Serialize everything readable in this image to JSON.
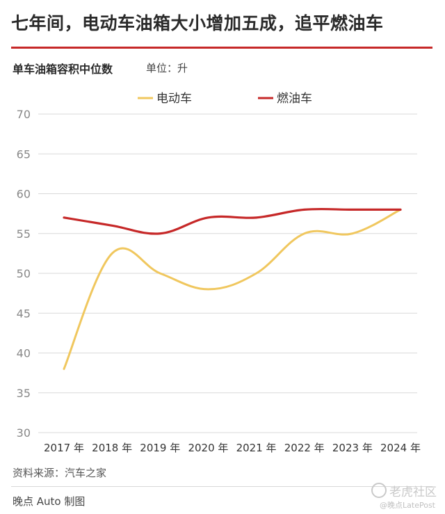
{
  "header": {
    "title": "七年间，电动车油箱大小增加五成，追平燃油车",
    "subtitle": "单车油箱容积中位数",
    "unit": "单位：升"
  },
  "footer": {
    "source": "资料来源：汽车之家",
    "credit": "晚点 Auto 制图",
    "watermark_main": "老虎社区",
    "watermark_sub": "@晚点LatePost"
  },
  "colors": {
    "accent_rule": "#c62828",
    "ev_line": "#f0c75e",
    "ice_line": "#c62828",
    "grid": "#d9d9d9"
  },
  "chart_data": {
    "type": "line",
    "title": "单车油箱容积中位数",
    "ylabel": "单位：升",
    "xlabel": "",
    "categories": [
      "2017 年",
      "2018 年",
      "2019 年",
      "2020 年",
      "2021 年",
      "2022 年",
      "2023 年",
      "2024 年"
    ],
    "yticks": [
      30,
      35,
      40,
      45,
      50,
      55,
      60,
      65,
      70
    ],
    "ylim": [
      30,
      70
    ],
    "grid": true,
    "legend_position": "top-center",
    "series": [
      {
        "name": "电动车",
        "color": "#f0c75e",
        "values": [
          38,
          52.5,
          50,
          48,
          50,
          55,
          55,
          58
        ]
      },
      {
        "name": "燃油车",
        "color": "#c62828",
        "values": [
          57,
          56,
          55,
          57,
          57,
          58,
          58,
          58
        ]
      }
    ]
  }
}
